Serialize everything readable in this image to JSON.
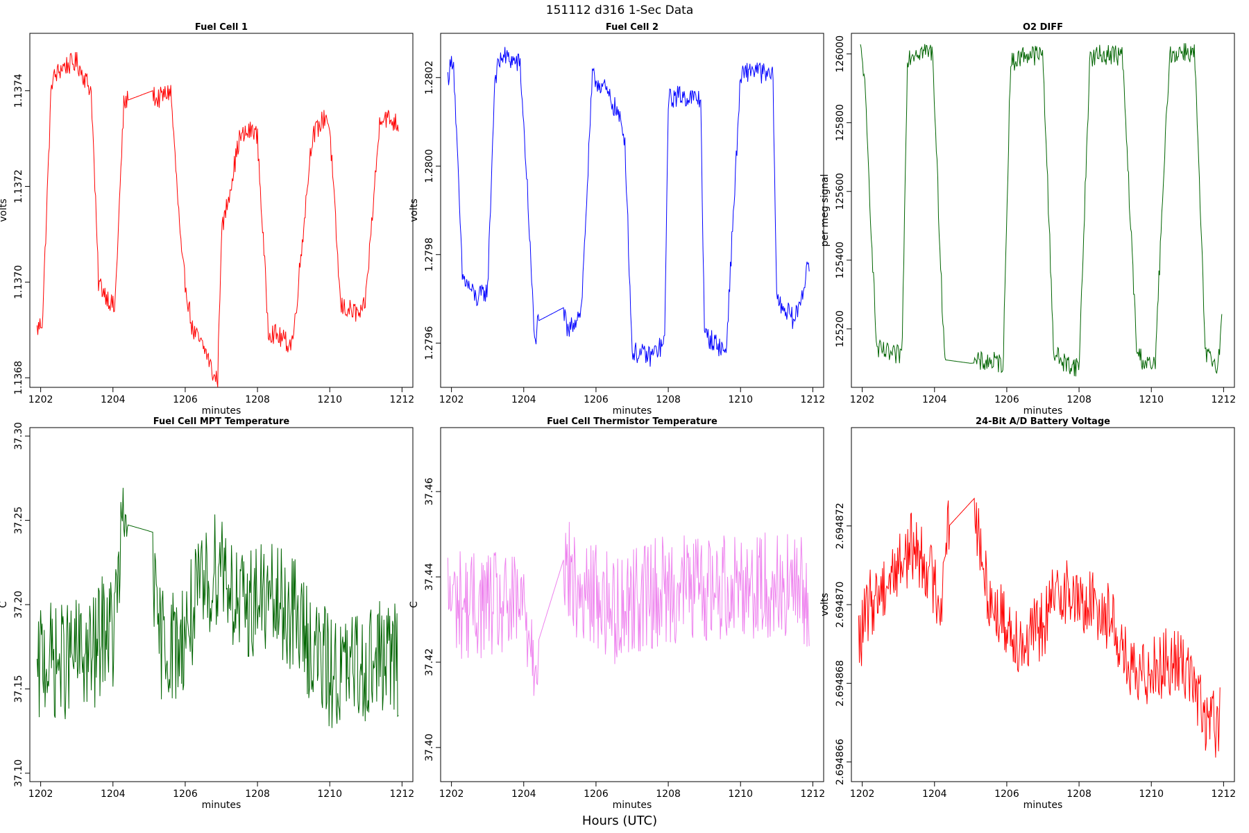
{
  "figure": {
    "title": "151112   d316   1-Sec Data",
    "outer_xlabel": "Hours (UTC)"
  },
  "chart_data": [
    {
      "type": "line",
      "title": "Fuel Cell 1",
      "xlabel": "minutes",
      "ylabel": "volts",
      "color": "#ff0000",
      "xlim": [
        1201.7,
        1212.3
      ],
      "ylim": [
        1.13678,
        1.13752
      ],
      "xticks": [
        1202,
        1204,
        1206,
        1208,
        1210,
        1212
      ],
      "yticks": [
        1.1368,
        1.137,
        1.1372,
        1.1374
      ],
      "ytick_labels": [
        "1.1368",
        "1.1370",
        "1.1372",
        "1.1374"
      ],
      "x": [
        1201.9,
        1202.05,
        1202.3,
        1202.6,
        1203.0,
        1203.4,
        1203.6,
        1204.0,
        1204.05,
        1204.3,
        1204.4,
        1205.1,
        1205.2,
        1205.6,
        1205.9,
        1206.2,
        1206.6,
        1206.8,
        1206.9,
        1207.0,
        1207.5,
        1207.9,
        1208.0,
        1208.3,
        1208.9,
        1209.0,
        1209.5,
        1209.9,
        1210.0,
        1210.3,
        1210.9,
        1211.0,
        1211.4,
        1211.9
      ],
      "values": [
        1.1369,
        1.13692,
        1.13742,
        1.13745,
        1.13746,
        1.1374,
        1.137,
        1.13695,
        1.13694,
        1.13737,
        1.13738,
        1.1374,
        1.13738,
        1.1374,
        1.13705,
        1.1369,
        1.13685,
        1.1368,
        1.1368,
        1.1371,
        1.1373,
        1.13732,
        1.1373,
        1.1369,
        1.13687,
        1.13689,
        1.1373,
        1.13735,
        1.13732,
        1.13695,
        1.13693,
        1.13697,
        1.13735,
        1.13733
      ]
    },
    {
      "type": "line",
      "title": "Fuel Cell 2",
      "xlabel": "minutes",
      "ylabel": "volts",
      "color": "#0000ff",
      "xlim": [
        1201.7,
        1212.3
      ],
      "ylim": [
        1.2795,
        1.2803
      ],
      "xticks": [
        1202,
        1204,
        1206,
        1208,
        1210,
        1212
      ],
      "yticks": [
        1.2796,
        1.2798,
        1.28,
        1.2802
      ],
      "ytick_labels": [
        "1.2796",
        "1.2798",
        "1.2800",
        "1.2802"
      ],
      "x": [
        1201.9,
        1202.05,
        1202.3,
        1202.7,
        1203.0,
        1203.2,
        1203.4,
        1203.9,
        1204.1,
        1204.3,
        1204.4,
        1205.1,
        1205.2,
        1205.6,
        1205.9,
        1206.2,
        1206.6,
        1206.8,
        1207.0,
        1207.5,
        1207.9,
        1208.0,
        1208.3,
        1208.9,
        1209.0,
        1209.6,
        1210.0,
        1210.3,
        1210.9,
        1211.0,
        1211.5,
        1211.9
      ],
      "values": [
        1.2802,
        1.28025,
        1.27975,
        1.2797,
        1.27972,
        1.2802,
        1.28025,
        1.28023,
        1.27995,
        1.2796,
        1.27965,
        1.27968,
        1.27962,
        1.27968,
        1.2802,
        1.28018,
        1.28012,
        1.28006,
        1.27958,
        1.27957,
        1.2796,
        1.28015,
        1.28016,
        1.28015,
        1.27962,
        1.27958,
        1.2802,
        1.28022,
        1.2802,
        1.2797,
        1.27965,
        1.27978
      ]
    },
    {
      "type": "line",
      "title": "O2 DIFF",
      "xlabel": "minutes",
      "ylabel": "per meg signal",
      "color": "#006400",
      "xlim": [
        1201.7,
        1212.3
      ],
      "ylim": [
        125030,
        126060
      ],
      "xticks": [
        1202,
        1204,
        1206,
        1208,
        1210,
        1212
      ],
      "yticks": [
        125200,
        125400,
        125600,
        125800,
        126000
      ],
      "ytick_labels": [
        "125200",
        "125400",
        "125600",
        "125800",
        "126000"
      ],
      "x": [
        1201.95,
        1202.05,
        1202.4,
        1202.9,
        1203.1,
        1203.25,
        1203.5,
        1203.95,
        1204.2,
        1204.3,
        1205.0,
        1205.5,
        1205.9,
        1206.1,
        1206.5,
        1207.0,
        1207.3,
        1207.6,
        1208.0,
        1208.3,
        1208.8,
        1209.2,
        1209.6,
        1209.9,
        1210.1,
        1210.5,
        1210.9,
        1211.2,
        1211.5,
        1211.85,
        1211.95
      ],
      "values": [
        126010,
        125950,
        125140,
        125120,
        125130,
        125990,
        126010,
        126005,
        125300,
        125110,
        125100,
        125105,
        125100,
        125970,
        126000,
        125995,
        125130,
        125100,
        125090,
        125990,
        126000,
        125995,
        125130,
        125095,
        125090,
        125995,
        126010,
        126000,
        125120,
        125100,
        125230
      ]
    },
    {
      "type": "line",
      "title": "Fuel Cell MPT Temperature",
      "xlabel": "minutes",
      "ylabel": "C",
      "color": "#006400",
      "xlim": [
        1201.7,
        1212.3
      ],
      "ylim": [
        37.095,
        37.305
      ],
      "xticks": [
        1202,
        1204,
        1206,
        1208,
        1210,
        1212
      ],
      "yticks": [
        37.1,
        37.15,
        37.2,
        37.25,
        37.3
      ],
      "ytick_labels": [
        "37.10",
        "37.15",
        "37.20",
        "37.25",
        "37.30"
      ],
      "x": [
        1201.9,
        1202.0,
        1202.5,
        1203.0,
        1203.5,
        1203.8,
        1204.0,
        1204.3,
        1205.1,
        1205.2,
        1205.8,
        1206.3,
        1206.7,
        1207.0,
        1207.5,
        1208.0,
        1208.5,
        1209.0,
        1209.5,
        1210.0,
        1210.5,
        1211.0,
        1211.5,
        1211.9
      ],
      "values": [
        37.145,
        37.17,
        37.165,
        37.17,
        37.17,
        37.19,
        37.18,
        37.248,
        37.243,
        37.18,
        37.175,
        37.2,
        37.215,
        37.23,
        37.195,
        37.205,
        37.2,
        37.195,
        37.175,
        37.16,
        37.16,
        37.165,
        37.17,
        37.165
      ],
      "noise": 0.035
    },
    {
      "type": "line",
      "title": "Fuel Cell Thermistor Temperature",
      "xlabel": "minutes",
      "ylabel": "C",
      "color": "#ee82ee",
      "xlim": [
        1201.7,
        1212.3
      ],
      "ylim": [
        37.392,
        37.475
      ],
      "xticks": [
        1202,
        1204,
        1206,
        1208,
        1210,
        1212
      ],
      "yticks": [
        37.4,
        37.42,
        37.44,
        37.46
      ],
      "ytick_labels": [
        "37.40",
        "37.42",
        "37.44",
        "37.46"
      ],
      "x": [
        1201.9,
        1202.5,
        1203.0,
        1203.5,
        1204.0,
        1204.3,
        1205.1,
        1205.5,
        1206.0,
        1206.5,
        1207.0,
        1207.5,
        1208.0,
        1208.5,
        1209.0,
        1209.5,
        1210.0,
        1210.5,
        1211.0,
        1211.5,
        1211.9
      ],
      "values": [
        37.435,
        37.433,
        37.434,
        37.432,
        37.433,
        37.422,
        37.444,
        37.435,
        37.436,
        37.432,
        37.435,
        37.436,
        37.437,
        37.438,
        37.437,
        37.438,
        37.439,
        37.438,
        37.438,
        37.437,
        37.436
      ],
      "noise": 0.013
    },
    {
      "type": "line",
      "title": "24-Bit A/D Battery Voltage",
      "xlabel": "minutes",
      "ylabel": "volts",
      "color": "#ff0000",
      "xlim": [
        1201.7,
        1212.3
      ],
      "ylim": [
        2.6948655,
        2.6948745
      ],
      "xticks": [
        1202,
        1204,
        1206,
        1208,
        1210,
        1212
      ],
      "yticks": [
        2.694866,
        2.694868,
        2.69487,
        2.694872
      ],
      "ytick_labels": [
        "2.694866",
        "2.694868",
        "2.694870",
        "2.694872"
      ],
      "x": [
        1201.9,
        1202.2,
        1202.6,
        1203.0,
        1203.4,
        1203.8,
        1204.2,
        1204.3,
        1205.1,
        1205.3,
        1205.6,
        1206.0,
        1206.5,
        1207.0,
        1207.5,
        1208.0,
        1208.5,
        1209.0,
        1209.3,
        1209.6,
        1210.0,
        1210.5,
        1211.0,
        1211.5,
        1211.9
      ],
      "values": [
        2.694869,
        2.69487,
        2.6948705,
        2.694871,
        2.6948715,
        2.694871,
        2.69487,
        2.6948719,
        2.6948727,
        2.694871,
        2.69487,
        2.6948695,
        2.694869,
        2.6948695,
        2.6948705,
        2.69487,
        2.69487,
        2.6948695,
        2.6948685,
        2.694868,
        2.6948685,
        2.6948685,
        2.6948685,
        2.694867,
        2.694867
      ],
      "noise": 9e-07
    }
  ]
}
